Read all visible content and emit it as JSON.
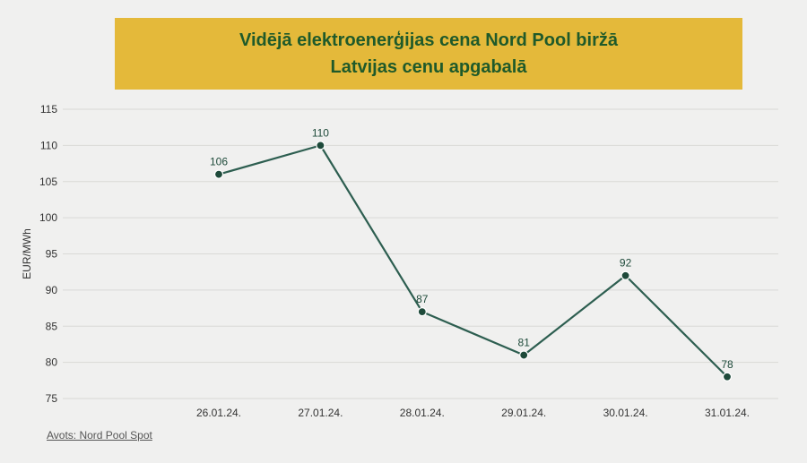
{
  "title_line1": "Vidējā elektroenerģijas cena Nord Pool biržā",
  "title_line2": "Latvijas cenu apgabalā",
  "source": "Avots:  Nord Pool Spot",
  "colors": {
    "title_bg": "#e4b93a",
    "title_text": "#1f5a2a",
    "line": "#2d5e50",
    "marker": "#1e4a3a"
  },
  "chart_data": {
    "type": "line",
    "title": "Vidējā elektroenerģijas cena Nord Pool biržā Latvijas cenu apgabalā",
    "xlabel": "",
    "ylabel": "EUR/MWh",
    "categories": [
      "26.01.24.",
      "27.01.24.",
      "28.01.24.",
      "29.01.24.",
      "30.01.24.",
      "31.01.24."
    ],
    "values": [
      106,
      110,
      87,
      81,
      92,
      78
    ],
    "data_labels": [
      "106",
      "110",
      "87",
      "81",
      "92",
      "78"
    ],
    "yticks": [
      75,
      80,
      85,
      90,
      95,
      100,
      105,
      110,
      115
    ],
    "ylim": [
      75,
      115
    ],
    "grid": true,
    "legend": "none"
  }
}
